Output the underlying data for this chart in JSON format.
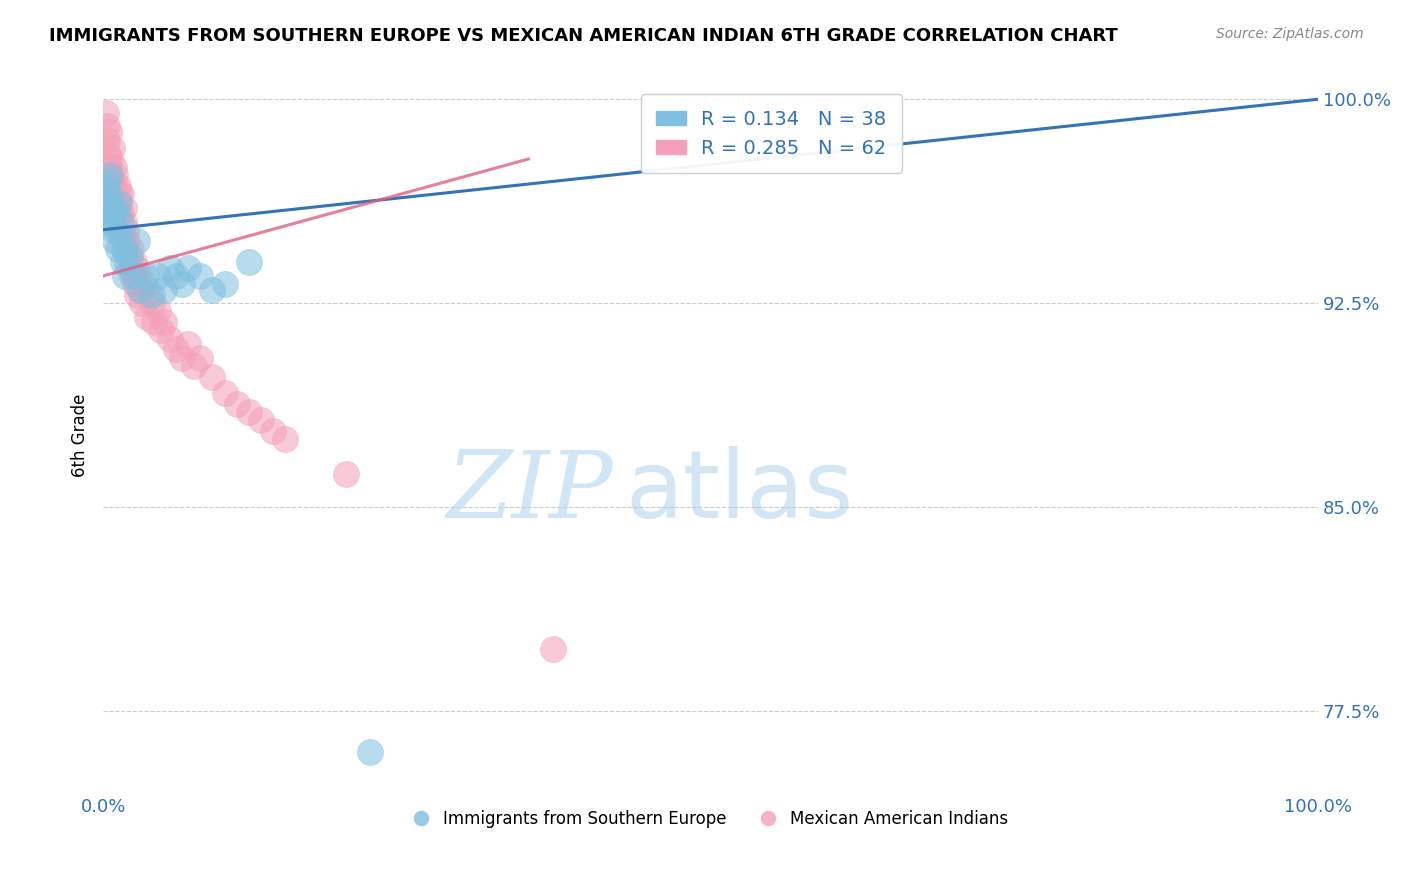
{
  "title": "IMMIGRANTS FROM SOUTHERN EUROPE VS MEXICAN AMERICAN INDIAN 6TH GRADE CORRELATION CHART",
  "source_text": "Source: ZipAtlas.com",
  "ylabel": "6th Grade",
  "watermark_zip": "ZIP",
  "watermark_atlas": "atlas",
  "xlim": [
    0.0,
    1.0
  ],
  "ylim": [
    0.745,
    1.008
  ],
  "yticks": [
    0.775,
    0.85,
    0.925,
    1.0
  ],
  "ytick_labels": [
    "77.5%",
    "85.0%",
    "92.5%",
    "100.0%"
  ],
  "xtick_labels": [
    "0.0%",
    "100.0%"
  ],
  "xticks": [
    0.0,
    1.0
  ],
  "blue_R": 0.134,
  "blue_N": 38,
  "pink_R": 0.285,
  "pink_N": 62,
  "blue_color": "#7fbfdf",
  "pink_color": "#f4a0b8",
  "blue_line_color": "#3473b7",
  "pink_line_color": "#e06080",
  "legend_blue_label": "Immigrants from Southern Europe",
  "legend_pink_label": "Mexican American Indians",
  "blue_line_x0": 0.0,
  "blue_line_y0": 0.952,
  "blue_line_x1": 1.0,
  "blue_line_y1": 1.0,
  "pink_line_x0": 0.0,
  "pink_line_y0": 0.935,
  "pink_line_x1": 0.35,
  "pink_line_y1": 0.978,
  "blue_scatter_x": [
    0.002,
    0.003,
    0.003,
    0.004,
    0.004,
    0.005,
    0.006,
    0.006,
    0.007,
    0.008,
    0.009,
    0.01,
    0.011,
    0.012,
    0.013,
    0.014,
    0.015,
    0.016,
    0.017,
    0.018,
    0.02,
    0.022,
    0.025,
    0.028,
    0.03,
    0.035,
    0.04,
    0.045,
    0.05,
    0.055,
    0.06,
    0.065,
    0.07,
    0.08,
    0.09,
    0.1,
    0.12,
    0.22
  ],
  "blue_scatter_y": [
    0.97,
    0.962,
    0.968,
    0.955,
    0.96,
    0.965,
    0.958,
    0.972,
    0.955,
    0.96,
    0.952,
    0.948,
    0.958,
    0.945,
    0.962,
    0.95,
    0.955,
    0.94,
    0.945,
    0.935,
    0.94,
    0.942,
    0.935,
    0.948,
    0.93,
    0.935,
    0.928,
    0.935,
    0.93,
    0.938,
    0.935,
    0.932,
    0.938,
    0.935,
    0.93,
    0.932,
    0.94,
    0.76
  ],
  "pink_scatter_x": [
    0.002,
    0.003,
    0.003,
    0.004,
    0.005,
    0.005,
    0.006,
    0.007,
    0.007,
    0.008,
    0.009,
    0.009,
    0.01,
    0.01,
    0.011,
    0.012,
    0.012,
    0.013,
    0.013,
    0.014,
    0.015,
    0.015,
    0.016,
    0.017,
    0.017,
    0.018,
    0.019,
    0.02,
    0.021,
    0.022,
    0.023,
    0.024,
    0.025,
    0.026,
    0.027,
    0.028,
    0.029,
    0.03,
    0.032,
    0.034,
    0.036,
    0.038,
    0.04,
    0.042,
    0.045,
    0.048,
    0.05,
    0.055,
    0.06,
    0.065,
    0.07,
    0.075,
    0.08,
    0.09,
    0.1,
    0.11,
    0.12,
    0.13,
    0.14,
    0.15,
    0.2,
    0.37
  ],
  "pink_scatter_y": [
    0.995,
    0.985,
    0.99,
    0.98,
    0.975,
    0.988,
    0.978,
    0.982,
    0.97,
    0.965,
    0.975,
    0.968,
    0.96,
    0.972,
    0.955,
    0.962,
    0.968,
    0.958,
    0.965,
    0.952,
    0.958,
    0.965,
    0.95,
    0.955,
    0.96,
    0.945,
    0.952,
    0.948,
    0.942,
    0.938,
    0.945,
    0.935,
    0.94,
    0.932,
    0.938,
    0.928,
    0.935,
    0.93,
    0.925,
    0.932,
    0.92,
    0.928,
    0.925,
    0.918,
    0.922,
    0.915,
    0.918,
    0.912,
    0.908,
    0.905,
    0.91,
    0.902,
    0.905,
    0.898,
    0.892,
    0.888,
    0.885,
    0.882,
    0.878,
    0.875,
    0.862,
    0.798
  ]
}
